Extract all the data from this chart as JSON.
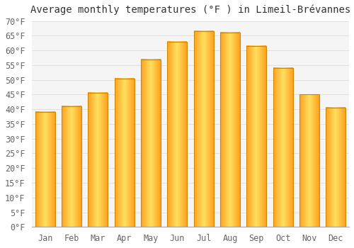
{
  "title": "Average monthly temperatures (°F ) in Limeil-Brévannes",
  "months": [
    "Jan",
    "Feb",
    "Mar",
    "Apr",
    "May",
    "Jun",
    "Jul",
    "Aug",
    "Sep",
    "Oct",
    "Nov",
    "Dec"
  ],
  "values": [
    39,
    41,
    45.5,
    50.5,
    57,
    63,
    66.5,
    66,
    61.5,
    54,
    45,
    40.5
  ],
  "bar_color_center": "#FFD966",
  "bar_color_edge": "#FFA020",
  "bar_edge_color": "#CC8800",
  "background_color": "#FFFFFF",
  "plot_bg_color": "#F5F5F5",
  "grid_color": "#E0E0E0",
  "ylim": [
    0,
    70
  ],
  "title_fontsize": 10,
  "tick_fontsize": 8.5,
  "ytick_labels": [
    "0°F",
    "5°F",
    "10°F",
    "15°F",
    "20°F",
    "25°F",
    "30°F",
    "35°F",
    "40°F",
    "45°F",
    "50°F",
    "55°F",
    "60°F",
    "65°F",
    "70°F"
  ],
  "tick_color": "#666666"
}
